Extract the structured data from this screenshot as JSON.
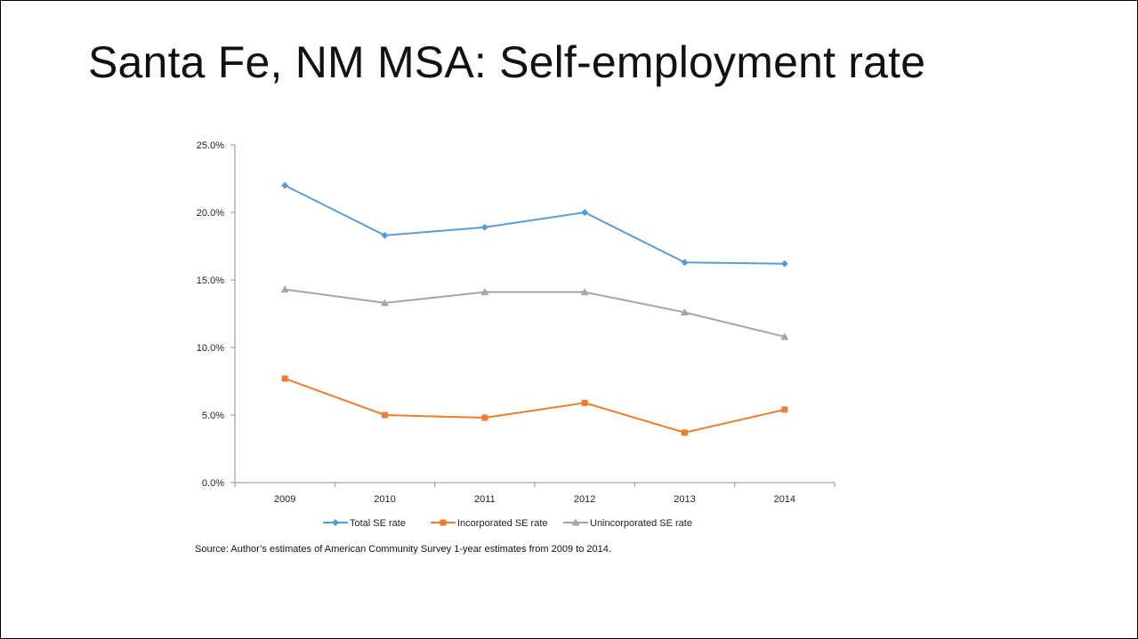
{
  "slide": {
    "title": "Santa Fe, NM MSA: Self-employment rate",
    "source_note": "Source: Author’s estimates of American Community Survey 1-year estimates  from 2009 to 2014."
  },
  "chart_data": {
    "type": "line",
    "categories": [
      "2009",
      "2010",
      "2011",
      "2012",
      "2013",
      "2014"
    ],
    "ylim": [
      0,
      0.25
    ],
    "yticks": [
      0,
      0.05,
      0.1,
      0.15,
      0.2,
      0.25
    ],
    "ytick_labels": [
      "0.0%",
      "5.0%",
      "10.0%",
      "15.0%",
      "20.0%",
      "25.0%"
    ],
    "grid": false,
    "legend_position": "bottom",
    "series": [
      {
        "name": "Total SE rate",
        "color": "#5B9BD5",
        "marker": "diamond",
        "values": [
          0.22,
          0.183,
          0.189,
          0.2,
          0.163,
          0.162
        ]
      },
      {
        "name": "Incorporated SE rate",
        "color": "#ED7D31",
        "marker": "square",
        "values": [
          0.077,
          0.05,
          0.048,
          0.059,
          0.037,
          0.054
        ]
      },
      {
        "name": "Unincorporated SE rate",
        "color": "#A5A5A5",
        "marker": "triangle",
        "values": [
          0.143,
          0.133,
          0.141,
          0.141,
          0.126,
          0.108
        ]
      }
    ]
  }
}
